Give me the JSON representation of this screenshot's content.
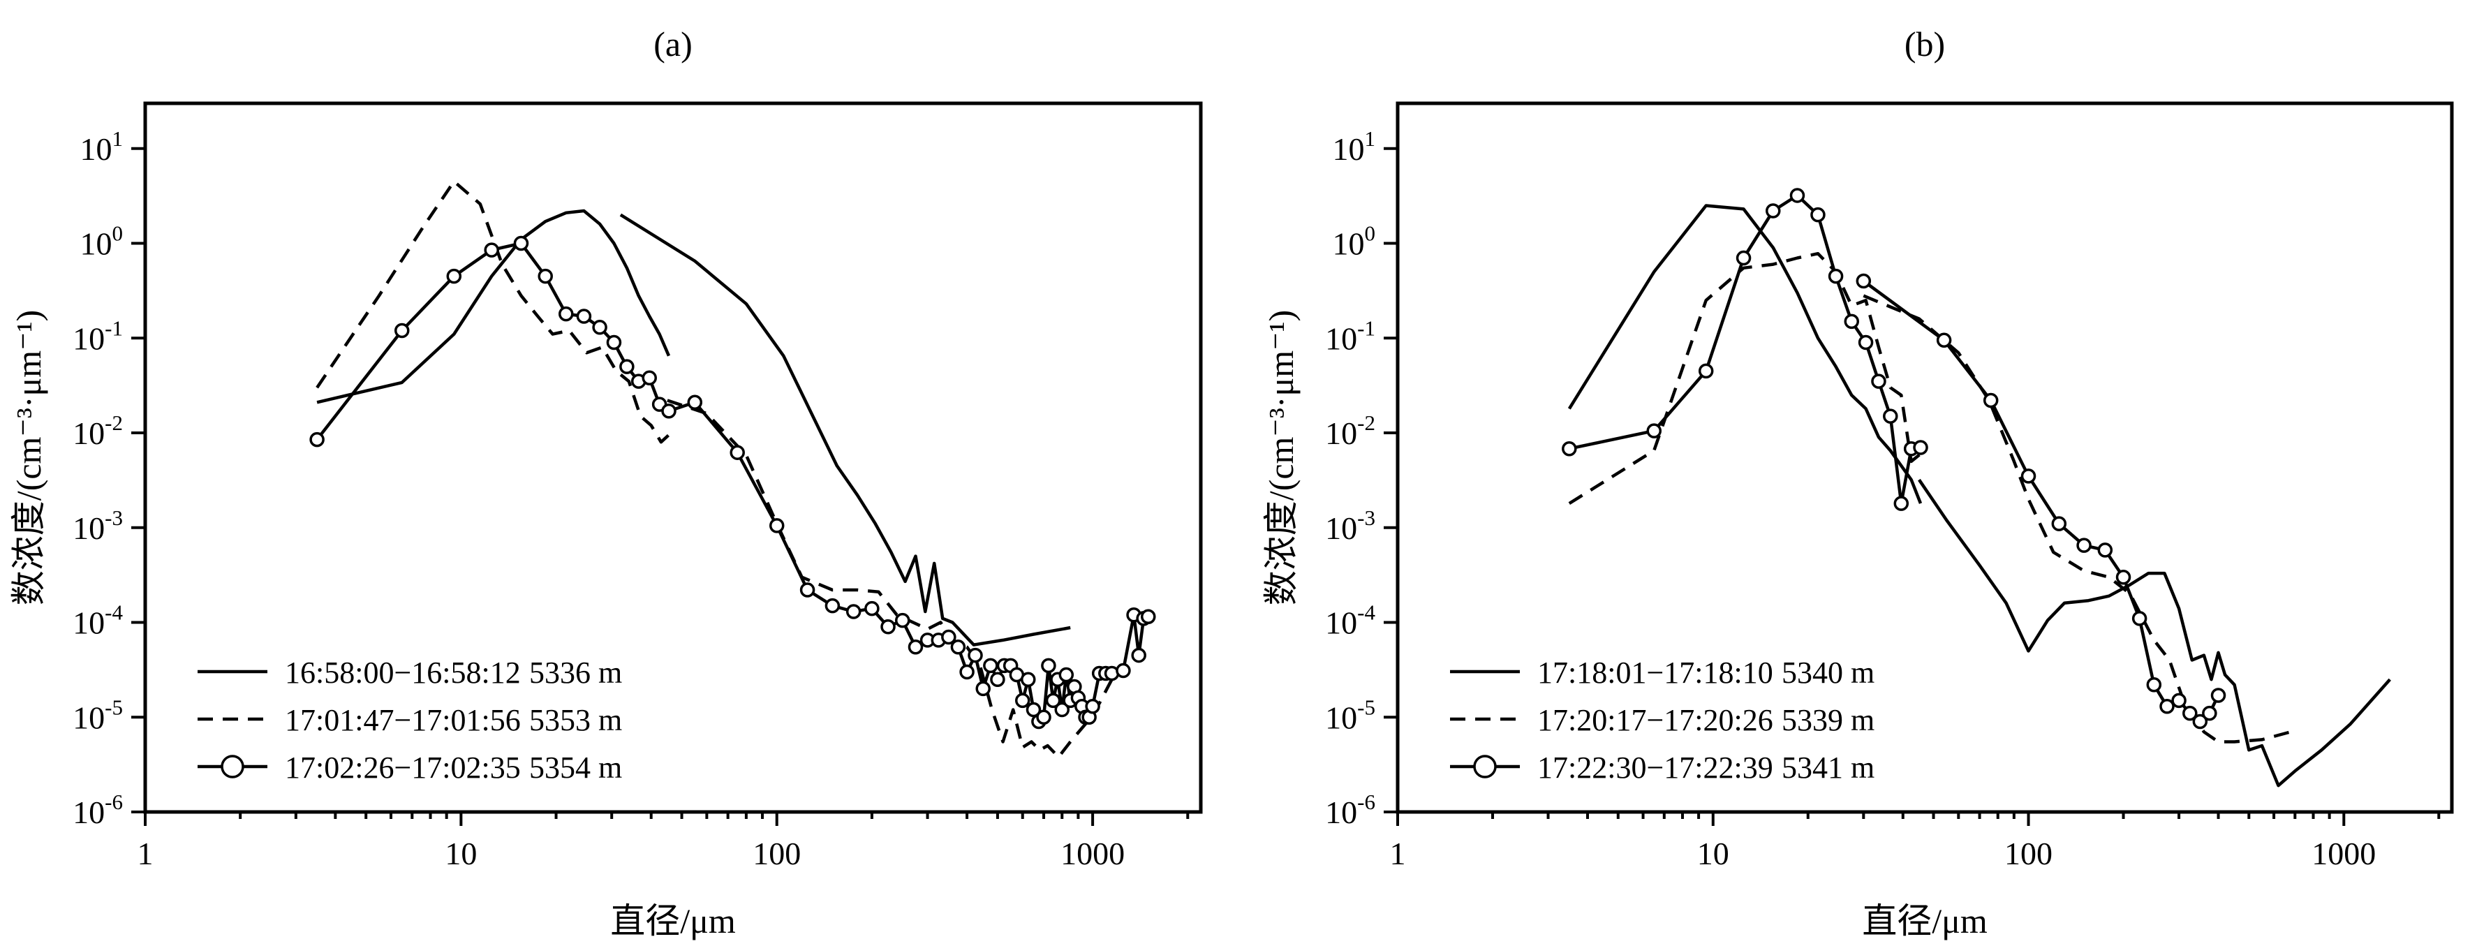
{
  "chart_data": [
    {
      "type": "line",
      "title": "(a)",
      "xlabel": "直径/μm",
      "ylabel": "数浓度/(cm⁻³·μm⁻¹)",
      "xscale": "log",
      "yscale": "log",
      "xlim": [
        1,
        2200
      ],
      "ylim": [
        1e-06,
        30
      ],
      "xticks": [
        {
          "v": 1,
          "label": "1"
        },
        {
          "v": 10,
          "label": "10"
        },
        {
          "v": 100,
          "label": "100"
        },
        {
          "v": 1000,
          "label": "1000"
        }
      ],
      "yticks": [
        {
          "v": 1e-06,
          "base": "10",
          "exp": "-6"
        },
        {
          "v": 1e-05,
          "base": "10",
          "exp": "-5"
        },
        {
          "v": 0.0001,
          "base": "10",
          "exp": "-4"
        },
        {
          "v": 0.001,
          "base": "10",
          "exp": "-3"
        },
        {
          "v": 0.01,
          "base": "10",
          "exp": "-2"
        },
        {
          "v": 0.1,
          "base": "10",
          "exp": "-1"
        },
        {
          "v": 1,
          "base": "10",
          "exp": "0"
        },
        {
          "v": 10,
          "base": "10",
          "exp": "1"
        }
      ],
      "legend_position": "bottom-left",
      "series": [
        {
          "name": "16:58:00−16:58:12",
          "altitude": "5336 m",
          "style": "solid",
          "segments": [
            {
              "x": [
                3.5,
                6.5,
                9.5,
                12.5,
                15.5,
                18.5,
                21.5,
                24.5,
                27.5,
                30.5,
                33.5,
                36.5,
                39.5,
                42.5,
                45.5
              ],
              "y": [
                0.021,
                0.034,
                0.11,
                0.45,
                1.1,
                1.7,
                2.1,
                2.2,
                1.6,
                1.0,
                0.55,
                0.28,
                0.17,
                0.11,
                0.065
              ]
            },
            {
              "x": [
                32,
                55,
                80,
                105,
                130,
                155,
                180,
                205,
                230,
                255,
                275,
                295,
                315,
                335,
                360,
                420,
                520,
                650,
                850
              ],
              "y": [
                2.0,
                0.65,
                0.23,
                0.065,
                0.015,
                0.0045,
                0.0022,
                0.0011,
                0.00055,
                0.00027,
                0.0005,
                0.00013,
                0.00042,
                0.00011,
                0.0001,
                5.8e-05,
                6.5e-05,
                7.5e-05,
                8.8e-05
              ]
            }
          ]
        },
        {
          "name": "17:01:47−17:01:56",
          "altitude": "5353 m",
          "style": "dashed",
          "segments": [
            {
              "x": [
                3.5,
                5.5,
                7.5,
                9.5,
                11.5,
                13.5,
                15.5,
                17.5,
                19.5,
                22.0,
                25.0,
                28.0,
                31.0,
                34.0,
                37.0,
                40.0,
                43.0,
                45.5
              ],
              "y": [
                0.03,
                0.28,
                1.4,
                4.5,
                2.6,
                0.6,
                0.28,
                0.17,
                0.11,
                0.12,
                0.07,
                0.08,
                0.045,
                0.035,
                0.015,
                0.012,
                0.008,
                0.0095
              ]
            },
            {
              "x": [
                45,
                60,
                80,
                100,
                120,
                150,
                180,
                210,
                240,
                270,
                300,
                330,
                360,
                400,
                440,
                480,
                520,
                560,
                600,
                640,
                680,
                720,
                780,
                850,
                950,
                1050,
                1150
              ],
              "y": [
                0.022,
                0.016,
                0.0058,
                0.0011,
                0.0003,
                0.00022,
                0.00022,
                0.00021,
                0.00012,
                0.0001,
                8.5e-05,
                0.0001,
                6.5e-05,
                5.5e-05,
                3.5e-05,
                1.2e-05,
                5.5e-06,
                1.2e-05,
                4.8e-06,
                5.5e-06,
                4.5e-06,
                5e-06,
                3.8e-06,
                5.5e-06,
                8.5e-06,
                1.4e-05,
                2.5e-05
              ]
            }
          ]
        },
        {
          "name": "17:02:26−17:02:35",
          "altitude": "5354 m",
          "style": "solid-circles",
          "segments": [
            {
              "x": [
                3.5,
                6.5,
                9.5,
                12.5,
                15.5,
                18.5,
                21.5,
                24.5,
                27.5,
                30.5,
                33.5,
                36.5,
                39.5,
                42.5,
                45.5,
                55,
                75,
                100,
                125,
                150,
                175,
                200,
                225,
                250,
                275,
                300,
                325,
                350,
                375,
                400,
                425,
                450,
                475,
                500,
                525,
                550,
                575,
                600,
                625,
                650,
                675,
                700,
                725,
                750,
                775,
                800,
                825,
                850,
                875,
                900,
                925,
                950,
                975,
                1000,
                1050,
                1100,
                1150,
                1250,
                1350,
                1400,
                1450,
                1500
              ],
              "y": [
                0.0085,
                0.12,
                0.45,
                0.85,
                1.0,
                0.45,
                0.18,
                0.17,
                0.13,
                0.09,
                0.05,
                0.035,
                0.038,
                0.02,
                0.017,
                0.021,
                0.0062,
                0.00105,
                0.00022,
                0.00015,
                0.00013,
                0.00014,
                9e-05,
                0.000105,
                5.5e-05,
                6.5e-05,
                6.5e-05,
                7e-05,
                5.5e-05,
                3e-05,
                4.5e-05,
                2e-05,
                3.5e-05,
                2.5e-05,
                3.5e-05,
                3.5e-05,
                2.8e-05,
                1.5e-05,
                2.5e-05,
                1.2e-05,
                9e-06,
                1e-05,
                3.5e-05,
                1.5e-05,
                2.5e-05,
                1.2e-05,
                2.8e-05,
                1.5e-05,
                2.1e-05,
                1.6e-05,
                1.3e-05,
                1e-05,
                1e-05,
                1.3e-05,
                2.9e-05,
                2.9e-05,
                2.9e-05,
                3.1e-05,
                0.00012,
                4.5e-05,
                0.00011,
                0.000115
              ]
            }
          ]
        }
      ]
    },
    {
      "type": "line",
      "title": "(b)",
      "xlabel": "直径/μm",
      "ylabel": "数浓度/(cm⁻³·μm⁻¹)",
      "xscale": "log",
      "yscale": "log",
      "xlim": [
        1,
        2200
      ],
      "ylim": [
        1e-06,
        30
      ],
      "xticks": [
        {
          "v": 1,
          "label": "1"
        },
        {
          "v": 10,
          "label": "10"
        },
        {
          "v": 100,
          "label": "100"
        },
        {
          "v": 1000,
          "label": "1000"
        }
      ],
      "yticks": [
        {
          "v": 1e-06,
          "base": "10",
          "exp": "-6"
        },
        {
          "v": 1e-05,
          "base": "10",
          "exp": "-5"
        },
        {
          "v": 0.0001,
          "base": "10",
          "exp": "-4"
        },
        {
          "v": 0.001,
          "base": "10",
          "exp": "-3"
        },
        {
          "v": 0.01,
          "base": "10",
          "exp": "-2"
        },
        {
          "v": 0.1,
          "base": "10",
          "exp": "-1"
        },
        {
          "v": 1,
          "base": "10",
          "exp": "0"
        },
        {
          "v": 10,
          "base": "10",
          "exp": "1"
        }
      ],
      "legend_position": "bottom-left",
      "series": [
        {
          "name": "17:18:01−17:18:10",
          "altitude": "5340 m",
          "style": "solid",
          "segments": [
            {
              "x": [
                3.5,
                6.5,
                9.5,
                12.5,
                15.5,
                18.5,
                21.5,
                24.5,
                27.5,
                30.5,
                33.5,
                36.5,
                39.5,
                42.5,
                45.5
              ],
              "y": [
                0.018,
                0.5,
                2.5,
                2.3,
                0.9,
                0.3,
                0.1,
                0.05,
                0.025,
                0.018,
                0.009,
                0.0065,
                0.0045,
                0.0032,
                0.0018
              ]
            },
            {
              "x": [
                45,
                55,
                70,
                85,
                100,
                115,
                130,
                155,
                180,
                210,
                240,
                270,
                300,
                330,
                360,
                380,
                400,
                420,
                450,
                500,
                550,
                620,
                700,
                850,
                1050,
                1400
              ],
              "y": [
                0.0032,
                0.0012,
                0.0004,
                0.00016,
                5e-05,
                0.000105,
                0.00016,
                0.00017,
                0.00019,
                0.00025,
                0.00033,
                0.00033,
                0.00014,
                4e-05,
                4.5e-05,
                2.5e-05,
                4.8e-05,
                2.8e-05,
                2.2e-05,
                4.5e-06,
                5e-06,
                1.9e-06,
                2.7e-06,
                4.5e-06,
                8.5e-06,
                2.5e-05
              ]
            }
          ]
        },
        {
          "name": "17:20:17−17:20:26",
          "altitude": "5339 m",
          "style": "dashed",
          "segments": [
            {
              "x": [
                3.5,
                6.5,
                9.5,
                12.5,
                15.5,
                18.5,
                21.5,
                24.5,
                27.5,
                30.5,
                33.5,
                36.5,
                39.5,
                42.5,
                45.5
              ],
              "y": [
                0.0018,
                0.0065,
                0.25,
                0.55,
                0.6,
                0.7,
                0.78,
                0.5,
                0.22,
                0.25,
                0.08,
                0.03,
                0.025,
                0.005,
                0.006
              ]
            },
            {
              "x": [
                30,
                45,
                60,
                75,
                90,
                100,
                120,
                150,
                180,
                210,
                250,
                280,
                310,
                360,
                400,
                450,
                550,
                700
              ],
              "y": [
                0.28,
                0.16,
                0.07,
                0.022,
                0.005,
                0.002,
                0.00055,
                0.00035,
                0.0003,
                0.0002,
                6.5e-05,
                4e-05,
                1.5e-05,
                7e-06,
                5.5e-06,
                5.5e-06,
                5.8e-06,
                7.2e-06
              ]
            }
          ]
        },
        {
          "name": "17:22:30−17:22:39",
          "altitude": "5341 m",
          "style": "solid-circles",
          "segments": [
            {
              "x": [
                3.5,
                6.5,
                9.5,
                12.5,
                15.5,
                18.5,
                21.5,
                24.5,
                27.5,
                30.5,
                33.5,
                36.5,
                39.5,
                42.5,
                45.5
              ],
              "y": [
                0.0068,
                0.0105,
                0.045,
                0.7,
                2.2,
                3.2,
                2.0,
                0.45,
                0.15,
                0.09,
                0.035,
                0.015,
                0.0018,
                0.0068,
                0.007
              ]
            },
            {
              "x": [
                30,
                54,
                76,
                100,
                125,
                150,
                175,
                200,
                225,
                250,
                275,
                300,
                325,
                350,
                375,
                400
              ],
              "y": [
                0.4,
                0.095,
                0.022,
                0.0035,
                0.0011,
                0.00065,
                0.00058,
                0.0003,
                0.00011,
                2.2e-05,
                1.3e-05,
                1.5e-05,
                1.1e-05,
                9e-06,
                1.1e-05,
                1.7e-05
              ]
            }
          ]
        }
      ]
    }
  ]
}
